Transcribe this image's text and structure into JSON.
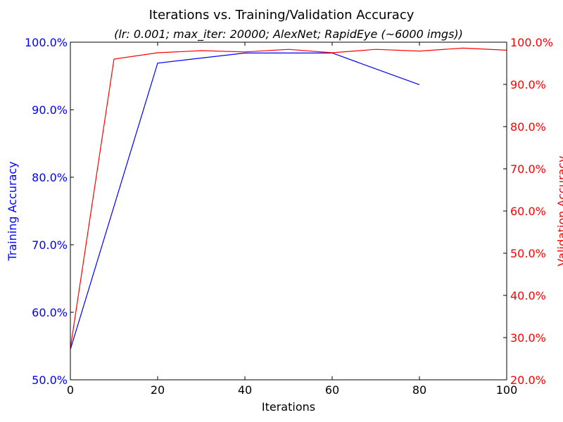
{
  "chart_data": {
    "type": "line",
    "title": "Iterations vs. Training/Validation Accuracy",
    "subtitle": "(lr: 0.001; max_iter: 20000; AlexNet; RapidEye (~6000 imgs))",
    "xlabel": "Iterations",
    "ylabel_left": "Training Accuracy",
    "ylabel_right": "Validation Accuracy",
    "xlim": [
      0,
      100
    ],
    "ylim_left": [
      50,
      100
    ],
    "ylim_right": [
      20,
      100
    ],
    "x_ticks": [
      0,
      20,
      40,
      60,
      80,
      100
    ],
    "x_tick_labels": [
      "0",
      "20",
      "40",
      "60",
      "80",
      "100"
    ],
    "y_left_ticks": [
      50,
      60,
      70,
      80,
      90,
      100
    ],
    "y_left_tick_labels": [
      "50.0%",
      "60.0%",
      "70.0%",
      "80.0%",
      "90.0%",
      "100.0%"
    ],
    "y_right_ticks": [
      20,
      30,
      40,
      50,
      60,
      70,
      80,
      90,
      100
    ],
    "y_right_tick_labels": [
      "20.0%",
      "30.0%",
      "40.0%",
      "50.0%",
      "60.0%",
      "70.0%",
      "80.0%",
      "90.0%",
      "100.0%"
    ],
    "grid": false,
    "series": [
      {
        "axis": "left",
        "color": "#0000ff",
        "x": [
          0,
          20,
          40,
          60,
          80
        ],
        "y": [
          54.5,
          96.9,
          98.4,
          98.4,
          93.7
        ]
      },
      {
        "axis": "right",
        "color": "#ff0000",
        "x": [
          0,
          10,
          20,
          30,
          40,
          50,
          60,
          70,
          80,
          90,
          100
        ],
        "y": [
          27.5,
          96.0,
          97.5,
          98.0,
          97.7,
          98.3,
          97.5,
          98.3,
          97.9,
          98.6,
          98.1
        ]
      }
    ],
    "colors": {
      "left_axis": "#0000ff",
      "right_axis": "#ff0000",
      "text": "#000000"
    }
  }
}
